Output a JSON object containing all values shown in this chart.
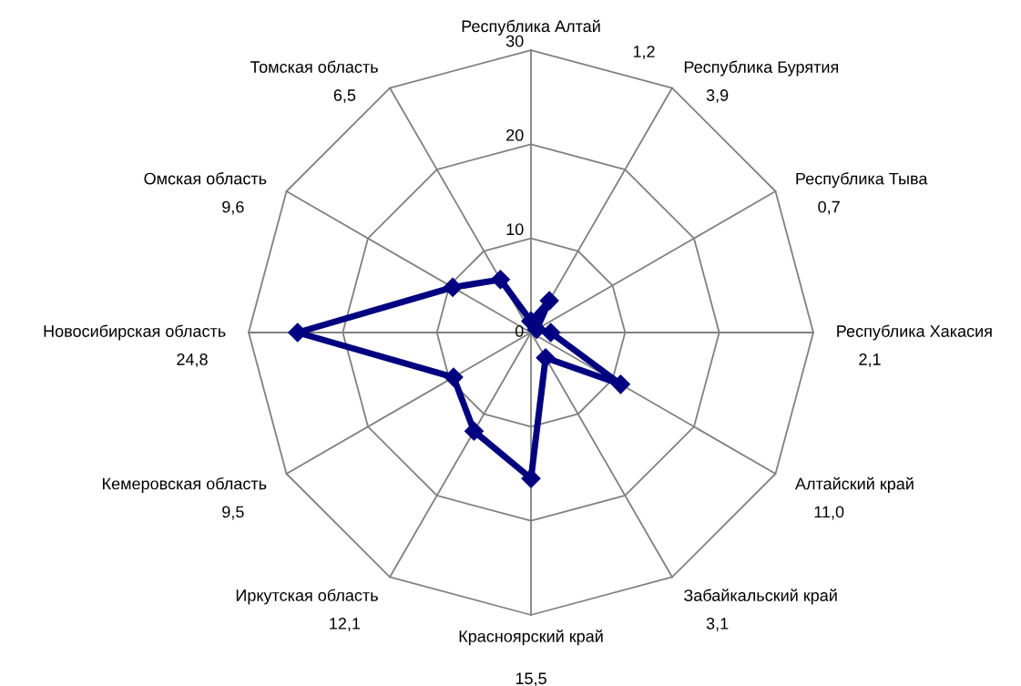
{
  "chart_data": {
    "type": "radar",
    "categories": [
      "Республика Алтай",
      "Республика Бурятия",
      "Республика Тыва",
      "Республика Хакасия",
      "Алтайский край",
      "Забайкальский край",
      "Красноярский край",
      "Иркутская область",
      "Кемеровская область",
      "Новосибирская область",
      "Омская область",
      "Томская область"
    ],
    "series": [
      {
        "color": "#000080",
        "values": [
          1.2,
          3.9,
          0.7,
          2.1,
          11.0,
          3.1,
          15.5,
          12.1,
          9.5,
          24.8,
          9.6,
          6.5
        ]
      }
    ],
    "annotations": [
      "1,2",
      "3,9",
      "0,7",
      "2,1",
      "11,0",
      "3,1",
      "15,5",
      "12,1",
      "9,5",
      "24,8",
      "9,6",
      "6,5"
    ],
    "ylim": [
      0,
      30
    ],
    "yticks": [
      0,
      10,
      20,
      30
    ],
    "grid": true,
    "marker": "diamond",
    "line_style": "solid"
  }
}
